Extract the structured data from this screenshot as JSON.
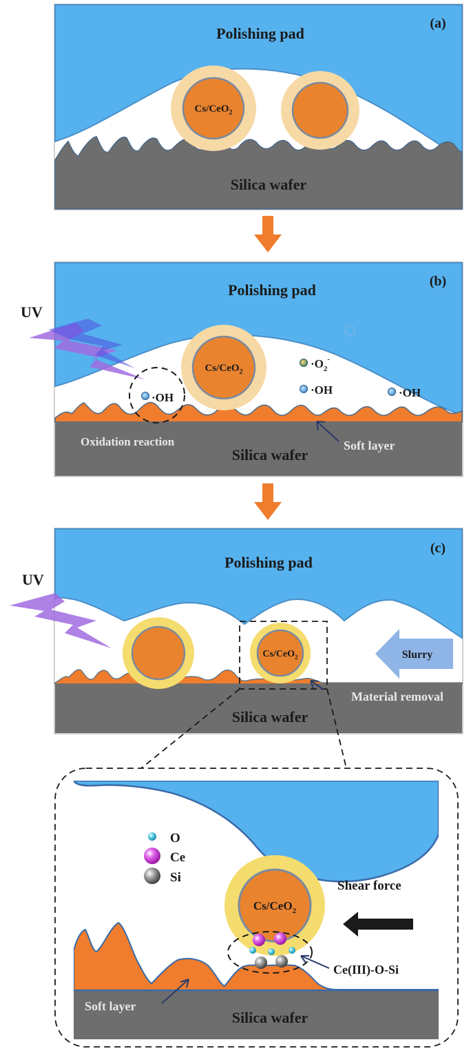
{
  "panel_a": {
    "tag": "(a)",
    "pad_label": "Polishing pad",
    "wafer_label": "Silica wafer",
    "particle_label": "Cs/CeO",
    "particle_sub": "2"
  },
  "panel_b": {
    "tag": "(b)",
    "pad_label": "Polishing pad",
    "wafer_label": "Silica wafer",
    "uv_label": "UV",
    "particle_label": "Cs/CeO",
    "particle_sub": "2",
    "radical_oh": "·OH",
    "radical_o2": "·O",
    "radical_o2_sub": "2",
    "radical_o2_sup": "-",
    "oxidation_label": "Oxidation reaction",
    "soft_layer_label": "Soft layer"
  },
  "panel_c": {
    "tag": "(c)",
    "pad_label": "Polishing pad",
    "wafer_label": "Silica wafer",
    "uv_label": "UV",
    "particle_label": "Cs/CeO",
    "particle_sub": "2",
    "slurry_label": "Slurry",
    "removal_label": "Material removal"
  },
  "zoom": {
    "particle_label": "Cs/CeO",
    "particle_sub": "2",
    "shear_label": "Shear force",
    "bond_label": "Ce(III)-O-Si",
    "soft_layer_label": "Soft layer",
    "wafer_label": "Silica wafer",
    "legend": [
      {
        "symbol": "O",
        "color": "#5fd0e8"
      },
      {
        "symbol": "Ce",
        "color": "#e060e8"
      },
      {
        "symbol": "Si",
        "color": "#9a9a9a"
      }
    ]
  },
  "colors": {
    "pad": "#56b2ee",
    "pad_stroke": "#4a8fc8",
    "wafer": "#6e6e6e",
    "soft_layer": "#ef7d2d",
    "particle_core": "#e9832e",
    "particle_shell_a": "#f7d9a6",
    "particle_shell_c": "#f5dc6e",
    "arrow": "#ef7d2d",
    "uv": "#a06be0",
    "slurry": "#8fb4e6"
  }
}
